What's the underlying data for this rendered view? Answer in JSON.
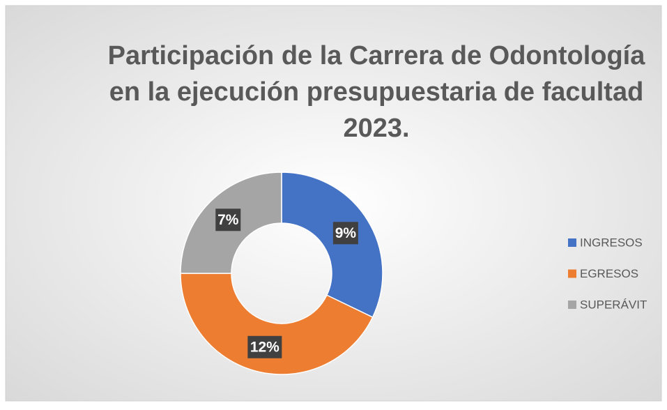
{
  "chart_data": {
    "type": "donut",
    "title": [
      "Participación de la Carrera de Odontología",
      "en la ejecución presupuestaria de facultad",
      "2023."
    ],
    "categories": [
      "INGRESOS",
      "EGRESOS",
      "SUPERÁVIT"
    ],
    "values": [
      9,
      12,
      7
    ],
    "value_labels": [
      "9%",
      "12%",
      "7%"
    ],
    "colors": [
      "#4472c4",
      "#ed7d31",
      "#a5a5a5"
    ],
    "legend": "right"
  }
}
